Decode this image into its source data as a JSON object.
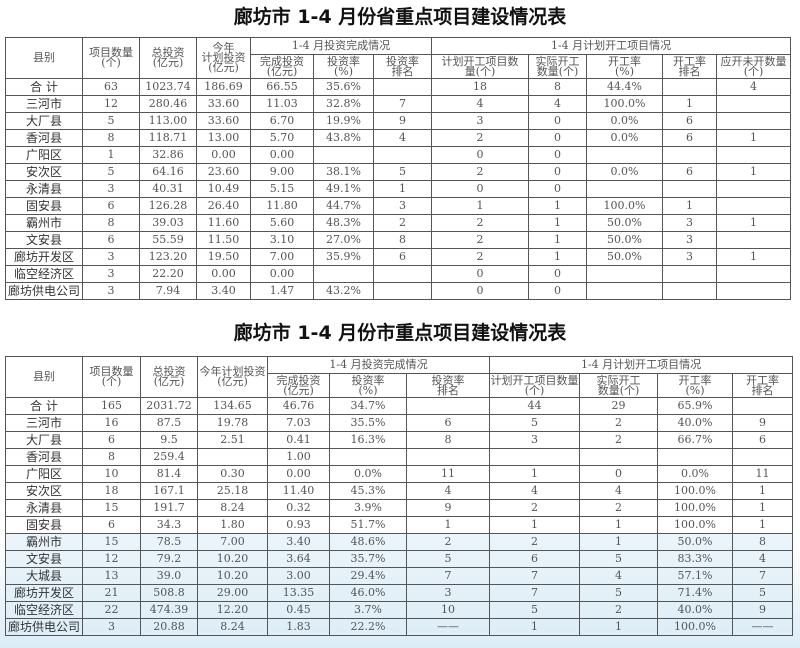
{
  "table1": {
    "title": "廊坊市 1-4 月份省重点项目建设情况表",
    "group_invest": "1-4 月投资完成情况",
    "group_start": "1-4 月计划开工项目情况",
    "headers": [
      "县别",
      "项目数量\n(个)",
      "总投资\n(亿元)",
      "今年\n计划投资\n(亿元)",
      "完成投资\n(亿元)",
      "投资率\n(%)",
      "投资率\n排名",
      "计划开工项目数\n量(个)",
      "实际开工\n数量(个)",
      "开工率\n(%)",
      "开工率\n排名",
      "应开未开数量\n(个)"
    ],
    "rows": [
      [
        "合 计",
        "63",
        "1023.74",
        "186.69",
        "66.55",
        "35.6%",
        "",
        "18",
        "8",
        "44.4%",
        "",
        "4"
      ],
      [
        "三河市",
        "12",
        "280.46",
        "33.60",
        "11.03",
        "32.8%",
        "7",
        "4",
        "4",
        "100.0%",
        "1",
        ""
      ],
      [
        "大厂县",
        "5",
        "113.00",
        "33.60",
        "6.70",
        "19.9%",
        "9",
        "3",
        "0",
        "0.0%",
        "6",
        ""
      ],
      [
        "香河县",
        "8",
        "118.71",
        "13.00",
        "5.70",
        "43.8%",
        "4",
        "2",
        "0",
        "0.0%",
        "6",
        "1"
      ],
      [
        "广阳区",
        "1",
        "32.86",
        "0.00",
        "0.00",
        "",
        "",
        "0",
        "0",
        "",
        "",
        ""
      ],
      [
        "安次区",
        "5",
        "64.16",
        "23.60",
        "9.00",
        "38.1%",
        "5",
        "2",
        "0",
        "0.0%",
        "6",
        "1"
      ],
      [
        "永清县",
        "3",
        "40.31",
        "10.49",
        "5.15",
        "49.1%",
        "1",
        "0",
        "0",
        "",
        "",
        ""
      ],
      [
        "固安县",
        "6",
        "126.28",
        "26.40",
        "11.80",
        "44.7%",
        "3",
        "1",
        "1",
        "100.0%",
        "1",
        ""
      ],
      [
        "霸州市",
        "8",
        "39.03",
        "11.60",
        "5.60",
        "48.3%",
        "2",
        "2",
        "1",
        "50.0%",
        "3",
        "1"
      ],
      [
        "文安县",
        "6",
        "55.59",
        "11.50",
        "3.10",
        "27.0%",
        "8",
        "2",
        "1",
        "50.0%",
        "3",
        ""
      ],
      [
        "廊坊开发区",
        "3",
        "123.20",
        "19.50",
        "7.00",
        "35.9%",
        "6",
        "2",
        "1",
        "50.0%",
        "3",
        "1"
      ],
      [
        "临空经济区",
        "3",
        "22.20",
        "0.00",
        "0.00",
        "",
        "",
        "0",
        "0",
        "",
        "",
        ""
      ],
      [
        "廊坊供电公司",
        "3",
        "7.94",
        "3.40",
        "1.47",
        "43.2%",
        "",
        "0",
        "0",
        "",
        "",
        ""
      ]
    ]
  },
  "table2": {
    "title": "廊坊市 1-4 月份市重点项目建设情况表",
    "group_invest": "1-4 月投资完成情况",
    "group_start": "1-4 月计划开工项目情况",
    "headers": [
      "县别",
      "项目数量\n(个)",
      "总投资\n(亿元)",
      "今年计划投资\n(亿元)",
      "完成投资\n(亿元)",
      "投资率\n(%)",
      "投资率\n排名",
      "计划开工项目数量\n(个)",
      "实际开工\n数量(个)",
      "开工率\n(%)",
      "开工率\n排名"
    ],
    "rows": [
      [
        "合 计",
        "165",
        "2031.72",
        "134.65",
        "46.76",
        "34.7%",
        "",
        "44",
        "29",
        "65.9%",
        ""
      ],
      [
        "三河市",
        "16",
        "87.5",
        "19.78",
        "7.03",
        "35.5%",
        "6",
        "5",
        "2",
        "40.0%",
        "9"
      ],
      [
        "大厂县",
        "6",
        "9.5",
        "2.51",
        "0.41",
        "16.3%",
        "8",
        "3",
        "2",
        "66.7%",
        "6"
      ],
      [
        "香河县",
        "8",
        "259.4",
        "",
        "1.00",
        "",
        "",
        "",
        "",
        "",
        ""
      ],
      [
        "广阳区",
        "10",
        "81.4",
        "0.30",
        "0.00",
        "0.0%",
        "11",
        "1",
        "0",
        "0.0%",
        "11"
      ],
      [
        "安次区",
        "18",
        "167.1",
        "25.18",
        "11.40",
        "45.3%",
        "4",
        "4",
        "4",
        "100.0%",
        "1"
      ],
      [
        "永清县",
        "15",
        "191.7",
        "8.24",
        "0.32",
        "3.9%",
        "9",
        "2",
        "2",
        "100.0%",
        "1"
      ],
      [
        "固安县",
        "6",
        "34.3",
        "1.80",
        "0.93",
        "51.7%",
        "1",
        "1",
        "1",
        "100.0%",
        "1"
      ],
      [
        "霸州市",
        "15",
        "78.5",
        "7.00",
        "3.40",
        "48.6%",
        "2",
        "2",
        "1",
        "50.0%",
        "8"
      ],
      [
        "文安县",
        "12",
        "79.2",
        "10.20",
        "3.64",
        "35.7%",
        "5",
        "6",
        "5",
        "83.3%",
        "4"
      ],
      [
        "大城县",
        "13",
        "39.0",
        "10.20",
        "3.00",
        "29.4%",
        "7",
        "7",
        "4",
        "57.1%",
        "7"
      ],
      [
        "廊坊开发区",
        "21",
        "508.8",
        "29.00",
        "13.35",
        "46.0%",
        "3",
        "7",
        "5",
        "71.4%",
        "5"
      ],
      [
        "临空经济区",
        "22",
        "474.39",
        "12.20",
        "0.45",
        "3.7%",
        "10",
        "5",
        "2",
        "40.0%",
        "9"
      ],
      [
        "廊坊供电公司",
        "3",
        "20.88",
        "8.24",
        "1.83",
        "22.2%",
        "——",
        "1",
        "1",
        "100.0%",
        "——"
      ]
    ]
  }
}
